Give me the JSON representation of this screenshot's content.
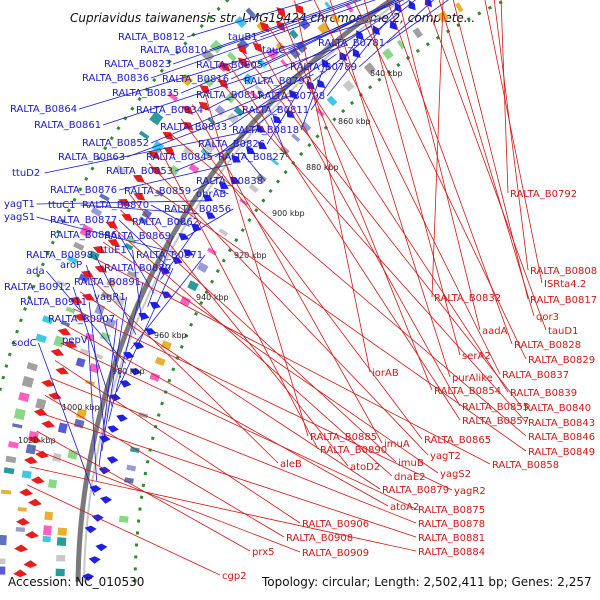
{
  "title": "Cupriavidus taiwanensis str. LMG19424 chromosome 2, complete...",
  "accession": "Accession: NC_010530",
  "topology": "Topology: circular; Length: 2,502,411 bp; Genes: 2,257",
  "colors": {
    "forward_strand": "#1f1fe6",
    "reverse_strand": "#e61e1e",
    "backbone": "#7a7a7a",
    "gc_dots": "#2e8b2e",
    "forward_label": "#1a1acc",
    "reverse_label": "#d01818"
  },
  "kbp_labels": [
    "840 kbp",
    "860 kbp",
    "880 kbp",
    "900 kbp",
    "920 kbp",
    "940 kbp",
    "960 kbp",
    "980 kbp",
    "1000 kbp",
    "1020 kbp"
  ],
  "forward_labels": [
    "RALTA_B0812",
    "tauB1",
    "RALTA_B0781",
    "RALTA_B0810",
    "tauC",
    "RALTA_B0823",
    "RALTA_B0805",
    "RALTA_B0789",
    "RALTA_B0836",
    "RALTA_B0816",
    "RALTA_B0797",
    "RALTA_B0835",
    "RALTA_B0815",
    "RALTA_B0798",
    "RALTA_B0864",
    "RALTA_B0834",
    "RALTA_B0811",
    "RALTA_B0861",
    "RALTA_B0833",
    "RALTA_B0818",
    "RALTA_B0852",
    "RALTA_B0826",
    "RALTA_B0863",
    "RALTA_B0845",
    "RALTA_B0827",
    "ttuD2",
    "RALTA_B0853",
    "RALTA_B0838",
    "RALTA_B0876",
    "RALTA_B0859",
    "ohrAB",
    "yagT1",
    "ttuC1",
    "RALTA_B0870",
    "RALTA_B0856",
    "yagS1",
    "RALTA_B0877",
    "RALTA_B0862",
    "RALTA_B0886",
    "RALTA_B0869",
    "ttuE1",
    "RALTA_B0898",
    "RALTA_B0871",
    "ada",
    "aroP",
    "RALTA_B0880",
    "RALTA_B0912",
    "RALTA_B0891",
    "RALTA_B0911",
    "yagR1",
    "RALTA_B0907",
    "pepV",
    "sodC"
  ],
  "reverse_labels": [
    "RALTA_B0792",
    "RALTA_B0808",
    "ISRta4.2",
    "RALTA_B0832",
    "RALTA_B0817",
    "qor3",
    "tauD1",
    "aadA",
    "RALTA_B0828",
    "serA2",
    "RALTA_B0829",
    "purAlike",
    "RALTA_B0837",
    "iorAB",
    "RALTA_B0854",
    "RALTA_B0839",
    "RALTA_B0855",
    "RALTA_B0840",
    "RALTA_B0857",
    "RALTA_B0843",
    "RALTA_B0885",
    "imuA",
    "RALTA_B0865",
    "RALTA_B0846",
    "RALTA_B0890",
    "yagT2",
    "RALTA_B0849",
    "atoD2",
    "imuB",
    "dnaE2",
    "yagS2",
    "RALTA_B0858",
    "aleB",
    "RALTA_B0879",
    "yagR2",
    "atoA2",
    "RALTA_B0875",
    "RALTA_B0906",
    "RALTA_B0878",
    "RALTA_B0908",
    "RALTA_B0881",
    "prx5",
    "RALTA_B0909",
    "RALTA_B0884",
    "cgp2"
  ]
}
